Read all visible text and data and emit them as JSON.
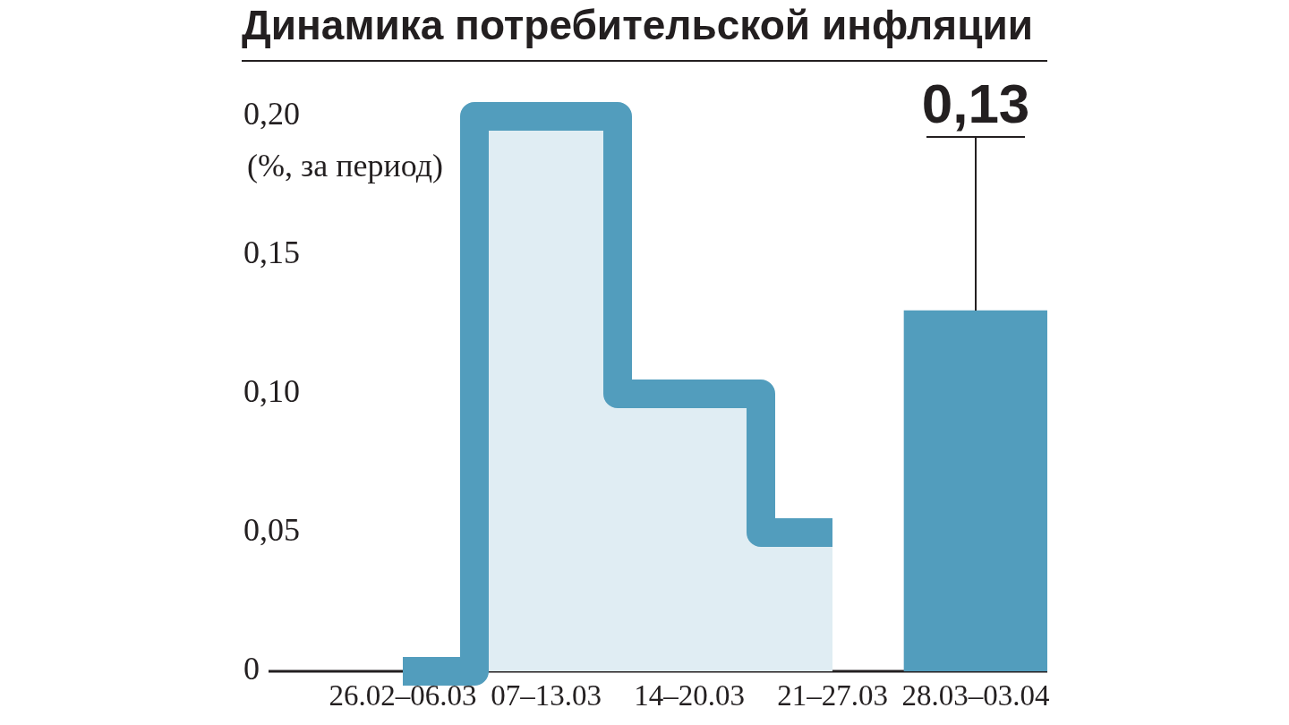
{
  "chart_data": {
    "type": "step",
    "title": "Динамика потребительской инфляции",
    "ylabel": "(%, за период)",
    "categories": [
      "26.02–06.03",
      "07–13.03",
      "14–20.03",
      "21–27.03",
      "28.03–03.04"
    ],
    "series": [
      {
        "type": "step",
        "color": "#529dbd",
        "values": [
          0,
          0.2,
          0.1,
          0.05,
          null
        ]
      },
      {
        "type": "bar",
        "color": "#529dbd",
        "values": [
          null,
          null,
          null,
          null,
          0.13
        ],
        "value_labels": [
          null,
          null,
          null,
          null,
          "0,13"
        ]
      }
    ],
    "ylim": [
      0,
      0.2
    ],
    "yticks": [
      0,
      {
        "value": 0.05,
        "label": "0,05"
      },
      {
        "value": 0.1,
        "label": "0,10"
      },
      {
        "value": 0.15,
        "label": "0,15"
      },
      {
        "value": 0.2,
        "label": "0,20"
      }
    ],
    "grid": false,
    "legend": false
  }
}
